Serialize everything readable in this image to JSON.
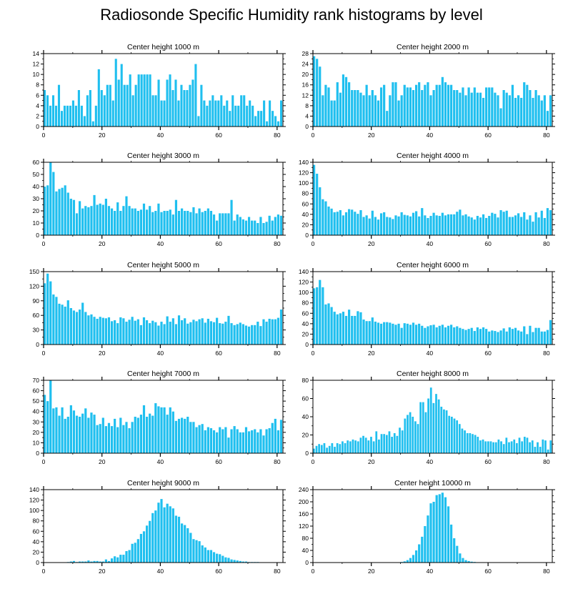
{
  "title": "Radiosonde Specific Humidity rank histograms by level",
  "bar_color": "#1fbfef",
  "axis_color": "#000000",
  "chart_data": [
    {
      "type": "bar",
      "title": "Center height 1000 m",
      "xlim": [
        0,
        82
      ],
      "ylim": [
        0,
        14
      ],
      "xticks": [
        0,
        20,
        40,
        60,
        80
      ],
      "yticks": [
        0,
        2,
        4,
        6,
        8,
        10,
        12,
        14
      ],
      "values": [
        7,
        6,
        4,
        6,
        4,
        8,
        3,
        4,
        4,
        4,
        5,
        4,
        7,
        4,
        2,
        6,
        7,
        1,
        4,
        11,
        7,
        6,
        8,
        8,
        5,
        13,
        9,
        12,
        8,
        8,
        10,
        6,
        8,
        10,
        10,
        10,
        10,
        10,
        6,
        6,
        9,
        5,
        5,
        9,
        10,
        7,
        9,
        5,
        8,
        7,
        7,
        8,
        9,
        12,
        2,
        8,
        5,
        4,
        5,
        6,
        5,
        5,
        6,
        4,
        5,
        3,
        6,
        4,
        4,
        6,
        6,
        4,
        5,
        4,
        2,
        3,
        3,
        5,
        1,
        5,
        3,
        2,
        1,
        5
      ]
    },
    {
      "type": "bar",
      "title": "Center height 2000 m",
      "xlim": [
        0,
        82
      ],
      "ylim": [
        0,
        28
      ],
      "xticks": [
        0,
        20,
        40,
        60,
        80
      ],
      "yticks": [
        0,
        4,
        8,
        12,
        16,
        20,
        24,
        28
      ],
      "values": [
        27,
        26,
        23,
        12,
        16,
        15,
        10,
        10,
        17,
        13,
        20,
        19,
        17,
        14,
        14,
        14,
        13,
        12,
        16,
        12,
        14,
        12,
        10,
        15,
        16,
        6,
        12,
        17,
        17,
        10,
        12,
        16,
        15,
        15,
        14,
        16,
        17,
        14,
        16,
        17,
        12,
        14,
        16,
        16,
        19,
        17,
        16,
        16,
        14,
        14,
        13,
        15,
        12,
        15,
        13,
        15,
        13,
        13,
        11,
        15,
        15,
        15,
        13,
        12,
        7,
        14,
        13,
        12,
        16,
        11,
        12,
        11,
        17,
        16,
        14,
        11,
        14,
        12,
        10,
        12,
        6,
        12
      ]
    },
    {
      "type": "bar",
      "title": "Center height 3000 m",
      "xlim": [
        0,
        82
      ],
      "ylim": [
        0,
        60
      ],
      "xticks": [
        0,
        20,
        40,
        60,
        80
      ],
      "yticks": [
        0,
        10,
        20,
        30,
        40,
        50,
        60
      ],
      "values": [
        40,
        41,
        60,
        52,
        36,
        38,
        39,
        41,
        35,
        30,
        29,
        18,
        28,
        22,
        24,
        23,
        24,
        33,
        25,
        26,
        25,
        30,
        24,
        22,
        20,
        27,
        20,
        24,
        32,
        24,
        22,
        22,
        20,
        21,
        26,
        21,
        24,
        19,
        20,
        26,
        19,
        20,
        20,
        21,
        17,
        29,
        20,
        22,
        20,
        20,
        19,
        23,
        18,
        22,
        19,
        20,
        22,
        20,
        17,
        12,
        18,
        18,
        18,
        18,
        29,
        12,
        17,
        15,
        13,
        12,
        15,
        12,
        12,
        10,
        15,
        10,
        11,
        16,
        12,
        15,
        17,
        16
      ]
    },
    {
      "type": "bar",
      "title": "Center height 4000 m",
      "xlim": [
        0,
        82
      ],
      "ylim": [
        0,
        140
      ],
      "xticks": [
        0,
        20,
        40,
        60,
        80
      ],
      "yticks": [
        0,
        20,
        40,
        60,
        80,
        100,
        120,
        140
      ],
      "values": [
        135,
        118,
        92,
        69,
        65,
        55,
        51,
        44,
        45,
        48,
        38,
        44,
        50,
        49,
        45,
        41,
        48,
        35,
        38,
        32,
        47,
        35,
        30,
        42,
        44,
        35,
        34,
        31,
        38,
        36,
        44,
        39,
        38,
        36,
        43,
        46,
        36,
        52,
        38,
        33,
        37,
        43,
        38,
        37,
        43,
        38,
        40,
        40,
        40,
        45,
        49,
        38,
        40,
        36,
        34,
        30,
        37,
        34,
        40,
        33,
        37,
        43,
        41,
        34,
        48,
        45,
        47,
        35,
        35,
        38,
        42,
        35,
        44,
        30,
        38,
        26,
        44,
        34,
        47,
        33,
        52,
        48
      ]
    },
    {
      "type": "bar",
      "title": "Center height 5000 m",
      "xlim": [
        0,
        82
      ],
      "ylim": [
        0,
        150
      ],
      "xticks": [
        0,
        20,
        40,
        60,
        80
      ],
      "yticks": [
        0,
        30,
        60,
        90,
        120,
        150
      ],
      "values": [
        126,
        146,
        130,
        103,
        98,
        84,
        82,
        78,
        91,
        75,
        70,
        67,
        72,
        86,
        67,
        60,
        62,
        57,
        53,
        57,
        55,
        54,
        56,
        48,
        50,
        44,
        56,
        54,
        47,
        51,
        57,
        49,
        52,
        40,
        56,
        50,
        44,
        49,
        46,
        39,
        47,
        42,
        58,
        47,
        54,
        42,
        60,
        50,
        54,
        43,
        46,
        51,
        48,
        52,
        54,
        45,
        53,
        48,
        46,
        55,
        44,
        43,
        47,
        59,
        44,
        40,
        42,
        45,
        42,
        39,
        37,
        40,
        40,
        47,
        38,
        52,
        47,
        53,
        52,
        52,
        55,
        72
      ]
    },
    {
      "type": "bar",
      "title": "Center height 6000 m",
      "xlim": [
        0,
        82
      ],
      "ylim": [
        0,
        140
      ],
      "xticks": [
        0,
        20,
        40,
        60,
        80
      ],
      "yticks": [
        0,
        20,
        40,
        60,
        80,
        100,
        120,
        140
      ],
      "values": [
        108,
        110,
        124,
        110,
        77,
        79,
        72,
        63,
        58,
        60,
        63,
        55,
        67,
        55,
        55,
        64,
        62,
        48,
        45,
        45,
        52,
        44,
        42,
        40,
        43,
        43,
        42,
        40,
        38,
        40,
        32,
        41,
        40,
        38,
        42,
        38,
        40,
        36,
        32,
        35,
        37,
        38,
        33,
        36,
        38,
        33,
        36,
        38,
        33,
        35,
        32,
        30,
        28,
        30,
        32,
        26,
        33,
        30,
        33,
        30,
        25,
        27,
        26,
        24,
        27,
        31,
        25,
        33,
        30,
        32,
        27,
        25,
        35,
        20,
        36,
        24,
        32,
        32,
        25,
        25,
        28,
        47
      ]
    },
    {
      "type": "bar",
      "title": "Center height 7000 m",
      "xlim": [
        0,
        82
      ],
      "ylim": [
        0,
        70
      ],
      "xticks": [
        0,
        20,
        40,
        60,
        80
      ],
      "yticks": [
        0,
        10,
        20,
        30,
        40,
        50,
        60,
        70
      ],
      "values": [
        56,
        50,
        70,
        43,
        44,
        36,
        44,
        33,
        35,
        46,
        41,
        36,
        35,
        38,
        43,
        34,
        39,
        37,
        27,
        28,
        34,
        26,
        29,
        26,
        33,
        25,
        34,
        27,
        30,
        24,
        30,
        35,
        34,
        37,
        46,
        35,
        38,
        36,
        48,
        45,
        44,
        44,
        37,
        44,
        40,
        31,
        33,
        34,
        33,
        35,
        30,
        30,
        25,
        27,
        28,
        22,
        25,
        24,
        22,
        20,
        25,
        23,
        25,
        15,
        23,
        26,
        23,
        20,
        20,
        25,
        21,
        22,
        23,
        20,
        23,
        17,
        23,
        24,
        29,
        33,
        22,
        32
      ]
    },
    {
      "type": "bar",
      "title": "Center height 8000 m",
      "xlim": [
        0,
        82
      ],
      "ylim": [
        0,
        80
      ],
      "xticks": [
        0,
        20,
        40,
        60,
        80
      ],
      "yticks": [
        0,
        20,
        40,
        60,
        80
      ],
      "values": [
        5,
        8,
        10,
        9,
        11,
        6,
        8,
        11,
        7,
        11,
        10,
        13,
        11,
        14,
        13,
        15,
        14,
        13,
        17,
        19,
        17,
        14,
        18,
        13,
        24,
        15,
        21,
        21,
        20,
        24,
        18,
        22,
        19,
        28,
        25,
        38,
        42,
        45,
        40,
        35,
        32,
        56,
        56,
        45,
        60,
        72,
        55,
        65,
        59,
        51,
        48,
        47,
        41,
        40,
        38,
        36,
        32,
        27,
        25,
        22,
        22,
        21,
        20,
        18,
        14,
        15,
        13,
        13,
        13,
        12,
        12,
        15,
        13,
        10,
        17,
        12,
        13,
        15,
        11,
        17,
        13,
        18,
        17,
        12,
        14,
        7,
        12,
        7,
        15,
        14,
        4,
        14
      ]
    },
    {
      "type": "bar",
      "title": "Center height 9000 m",
      "xlim": [
        0,
        82
      ],
      "ylim": [
        0,
        140
      ],
      "xticks": [
        0,
        20,
        40,
        60,
        80
      ],
      "yticks": [
        0,
        20,
        40,
        60,
        80,
        100,
        120,
        140
      ],
      "values": [
        0,
        0,
        0,
        0,
        0,
        0,
        0,
        0,
        1,
        2,
        3,
        1,
        2,
        2,
        2,
        4,
        2,
        3,
        3,
        2,
        2,
        6,
        3,
        8,
        12,
        10,
        15,
        15,
        22,
        24,
        36,
        38,
        45,
        55,
        60,
        71,
        80,
        95,
        100,
        115,
        122,
        106,
        113,
        108,
        104,
        90,
        88,
        75,
        72,
        66,
        57,
        45,
        43,
        41,
        33,
        29,
        24,
        24,
        20,
        17,
        16,
        13,
        10,
        9,
        6,
        5,
        4,
        3,
        2,
        2,
        1,
        1,
        1,
        1,
        0,
        0,
        0,
        0,
        0,
        0,
        0,
        0
      ]
    },
    {
      "type": "bar",
      "title": "Center height 10000 m",
      "xlim": [
        0,
        82
      ],
      "ylim": [
        0,
        240
      ],
      "xticks": [
        0,
        20,
        40,
        60,
        80
      ],
      "yticks": [
        0,
        40,
        80,
        120,
        160,
        200,
        240
      ],
      "values": [
        0,
        0,
        0,
        0,
        0,
        0,
        0,
        0,
        0,
        0,
        0,
        0,
        0,
        0,
        0,
        0,
        0,
        0,
        0,
        0,
        0,
        0,
        0,
        0,
        0,
        0,
        0,
        0,
        0,
        1,
        2,
        4,
        8,
        15,
        25,
        40,
        60,
        85,
        120,
        155,
        195,
        200,
        222,
        225,
        230,
        215,
        185,
        125,
        80,
        55,
        30,
        15,
        8,
        5,
        3,
        2,
        1,
        1,
        1,
        0,
        0,
        0,
        0,
        0,
        0,
        0,
        0,
        0,
        0,
        0,
        0,
        0,
        0,
        0,
        0,
        0,
        0,
        0,
        0,
        0,
        0,
        0
      ]
    }
  ]
}
